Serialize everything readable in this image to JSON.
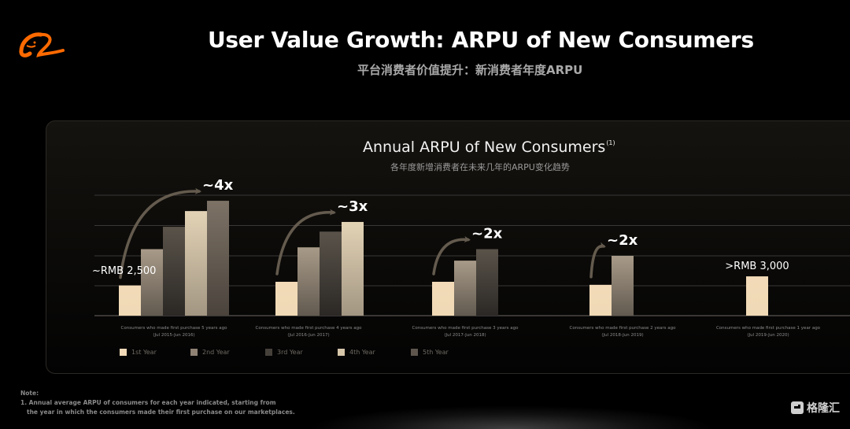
{
  "header": {
    "logo": "alibaba-logo-icon",
    "title": "User Value Growth: ARPU of New Consumers",
    "subtitle": "平台消费者价值提升：新消费者年度ARPU"
  },
  "colors": {
    "logo_orange": "#ff6a00",
    "year1": "#f2dab8",
    "year2": "#9b8e7f",
    "year3": "#4c463f",
    "year4": "#d8c8ad",
    "year5": "#6f655a",
    "gridline": "#3a3836",
    "arrow": "#6e6456"
  },
  "chart_data": {
    "type": "bar",
    "title": "Annual ARPU of New Consumers",
    "title_superscript": "(1)",
    "subtitle": "各年度新增消费者在未来几年的ARPU变化趋势",
    "xlabel": "",
    "ylabel": "",
    "units": "RMB",
    "ylim": [
      0,
      12500
    ],
    "grid": true,
    "legend_position": "bottom",
    "categories": [
      {
        "label": "Consumers who made first purchase 5 years ago",
        "period": "(Jul 2015-Jun 2016)"
      },
      {
        "label": "Consumers who made first purchase 4 years ago",
        "period": "(Jul 2016-Jun 2017)"
      },
      {
        "label": "Consumers who made first purchase 3 years ago",
        "period": "(Jul 2017-Jun 2018)"
      },
      {
        "label": "Consumers who made first purchase 2 years ago",
        "period": "(Jul 2018-Jun 2019)"
      },
      {
        "label": "Consumers who made first purchase 1 year ago",
        "period": "(Jul 2019-Jun 2020)"
      }
    ],
    "series": [
      {
        "name": "1st Year",
        "values": [
          2500,
          2800,
          2800,
          2550,
          3250
        ]
      },
      {
        "name": "2nd Year",
        "values": [
          5500,
          5650,
          4550,
          4950,
          null
        ]
      },
      {
        "name": "3rd Year",
        "values": [
          7350,
          6950,
          5500,
          null,
          null
        ]
      },
      {
        "name": "4th Year",
        "values": [
          8650,
          7750,
          null,
          null,
          null
        ]
      },
      {
        "name": "5th Year",
        "values": [
          9500,
          null,
          null,
          null,
          null
        ]
      }
    ],
    "annotations": [
      {
        "group": 0,
        "text": "~4x",
        "type": "growth-arrow"
      },
      {
        "group": 1,
        "text": "~3x",
        "type": "growth-arrow"
      },
      {
        "group": 2,
        "text": "~2x",
        "type": "growth-arrow"
      },
      {
        "group": 3,
        "text": "~2x",
        "type": "growth-arrow"
      },
      {
        "group": 0,
        "text": "~RMB 2,500",
        "type": "value-label"
      },
      {
        "group": 4,
        "text": ">RMB 3,000",
        "type": "value-label"
      }
    ]
  },
  "footnote": {
    "heading": "Note:",
    "line1": "1. Annual average ARPU of consumers for each year indicated, starting from",
    "line2": "the year in which the consumers made their first purchase on our marketplaces."
  },
  "watermark": {
    "icon": "gelonghui-logo-icon",
    "text": "格隆汇"
  }
}
